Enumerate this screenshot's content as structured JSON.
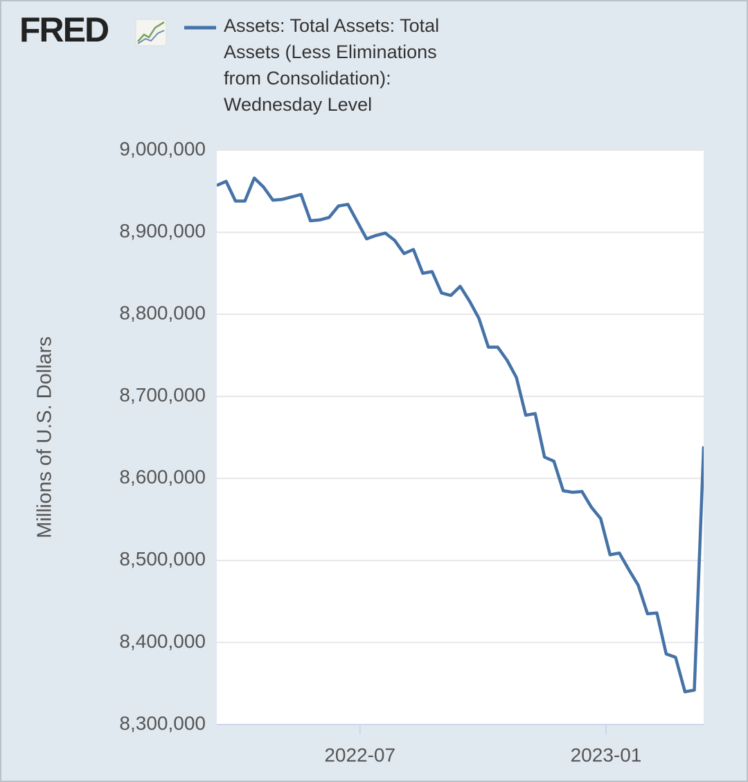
{
  "chart_data": {
    "type": "line",
    "logo": "FRED",
    "y_label": "Millions of U.S. Dollars",
    "series": [
      {
        "name": "Assets: Total Assets: Total Assets (Less Eliminations from Consolidation): Wednesday Level",
        "color": "#4572a7",
        "values": [
          8957000,
          8962000,
          8938000,
          8938000,
          8966000,
          8955000,
          8939000,
          8940000,
          8943000,
          8946000,
          8914000,
          8915000,
          8918000,
          8932000,
          8934000,
          8913000,
          8892000,
          8896000,
          8899000,
          8890000,
          8874000,
          8879000,
          8850000,
          8852000,
          8826000,
          8823000,
          8834000,
          8816000,
          8795000,
          8760000,
          8760000,
          8744000,
          8723000,
          8677000,
          8679000,
          8626000,
          8621000,
          8585000,
          8583000,
          8584000,
          8565000,
          8551000,
          8507000,
          8509000,
          8489000,
          8470000,
          8435000,
          8436000,
          8386000,
          8382000,
          8340000,
          8342000,
          8639000
        ]
      }
    ],
    "xlim": [
      0,
      52
    ],
    "xticks": [
      {
        "value": 15.29,
        "label": "2022-07"
      },
      {
        "value": 41.57,
        "label": "2023-01"
      }
    ],
    "ylim": [
      8300000,
      9000000
    ],
    "yticks": [
      {
        "value": 8300000,
        "label": "8,300,000"
      },
      {
        "value": 8400000,
        "label": "8,400,000"
      },
      {
        "value": 8500000,
        "label": "8,500,000"
      },
      {
        "value": 8600000,
        "label": "8,600,000"
      },
      {
        "value": 8700000,
        "label": "8,700,000"
      },
      {
        "value": 8800000,
        "label": "8,800,000"
      },
      {
        "value": 8900000,
        "label": "8,900,000"
      },
      {
        "value": 9000000,
        "label": "9,000,000"
      }
    ],
    "grid": true
  }
}
